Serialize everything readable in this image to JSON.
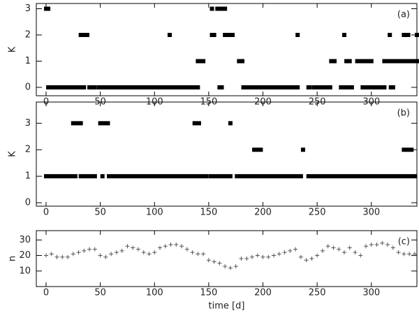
{
  "chart_data": [
    {
      "type": "runs",
      "annotation": "(a)",
      "ylabel": "K",
      "x_start": [
        2,
        40,
        49,
        55,
        160,
        182,
        242,
        247,
        272,
        292,
        318,
        140,
        178,
        263,
        277,
        287,
        312,
        32,
        114,
        153,
        165,
        232,
        275,
        317,
        330,
        342,
        0,
        153,
        158
      ],
      "x_end": [
        35,
        45,
        52,
        140,
        162,
        232,
        243,
        262,
        282,
        312,
        320,
        145,
        181,
        266,
        280,
        300,
        342,
        38,
        114,
        155,
        172,
        232,
        275,
        317,
        334,
        342,
        2,
        153,
        165
      ],
      "values": [
        0,
        0,
        0,
        0,
        0,
        0,
        0,
        0,
        0,
        0,
        0,
        1,
        1,
        1,
        1,
        1,
        1,
        2,
        2,
        2,
        2,
        2,
        2,
        2,
        2,
        2,
        3,
        3,
        3
      ],
      "color": "#000000",
      "xlim": [
        -9,
        342
      ],
      "xticks": [
        0,
        50,
        100,
        150,
        200,
        250,
        300
      ],
      "ylim": [
        -0.32,
        3.2
      ],
      "yticks": [
        0,
        1,
        2,
        3
      ]
    },
    {
      "type": "runs",
      "annotation": "(b)",
      "ylabel": "K",
      "x_start": [
        0,
        32,
        52,
        58,
        152,
        176,
        198,
        242,
        192,
        237,
        330,
        25,
        50,
        137,
        170
      ],
      "x_end": [
        27,
        45,
        52,
        148,
        170,
        195,
        235,
        340,
        198,
        237,
        337,
        32,
        57,
        141,
        170
      ],
      "values": [
        1,
        1,
        1,
        1,
        1,
        1,
        1,
        1,
        2,
        2,
        2,
        3,
        3,
        3,
        3
      ],
      "color": "#000000",
      "xlim": [
        -9,
        342
      ],
      "xticks": [
        0,
        50,
        100,
        150,
        200,
        250,
        300
      ],
      "ylim": [
        -0.13,
        3.8
      ],
      "yticks": [
        0,
        1,
        2,
        3
      ]
    },
    {
      "type": "scatter",
      "annotation": "(c)",
      "ylabel": "n",
      "xlabel": "time [d]",
      "x": [
        0,
        5,
        10,
        15,
        20,
        25,
        30,
        35,
        40,
        45,
        50,
        55,
        60,
        65,
        70,
        75,
        80,
        85,
        90,
        95,
        100,
        105,
        110,
        115,
        120,
        125,
        130,
        135,
        140,
        145,
        150,
        155,
        160,
        165,
        170,
        175,
        180,
        185,
        190,
        195,
        200,
        205,
        210,
        215,
        220,
        225,
        230,
        235,
        240,
        245,
        250,
        255,
        260,
        265,
        270,
        275,
        280,
        285,
        290,
        295,
        300,
        305,
        310,
        315,
        320,
        325,
        330,
        335,
        340
      ],
      "values": [
        20,
        21,
        19,
        19,
        19,
        21,
        22,
        23,
        24,
        24,
        20,
        19,
        21,
        22,
        23,
        26,
        25,
        24,
        22,
        21,
        22,
        25,
        26,
        27,
        27,
        26,
        24,
        22,
        21,
        21,
        17,
        16,
        15,
        13,
        12,
        13,
        18,
        18,
        19,
        20,
        19,
        19,
        20,
        21,
        22,
        23,
        24,
        19,
        17,
        18,
        20,
        23,
        26,
        25,
        24,
        22,
        25,
        22,
        20,
        26,
        27,
        27,
        28,
        27,
        25,
        22,
        21,
        21,
        21
      ],
      "color": "#555555",
      "xlim": [
        -9,
        342
      ],
      "xticks": [
        0,
        50,
        100,
        150,
        200,
        250,
        300
      ],
      "ylim": [
        0,
        36
      ],
      "yticks": [
        10,
        20,
        30
      ]
    }
  ]
}
